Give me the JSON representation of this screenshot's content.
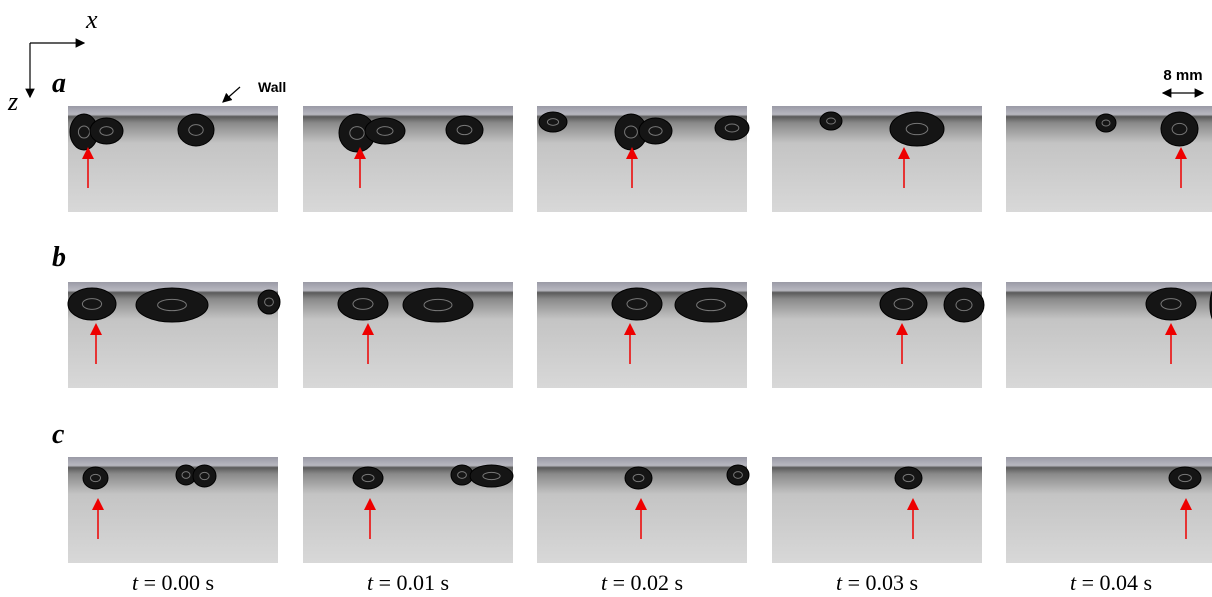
{
  "axes": {
    "x": "x",
    "z": "z"
  },
  "annotations": {
    "wall": "Wall",
    "scale": "8 mm"
  },
  "rows": [
    {
      "label": "a"
    },
    {
      "label": "b"
    },
    {
      "label": "c"
    }
  ],
  "time_labels": [
    {
      "variable": "t",
      "text": "= 0.00 s"
    },
    {
      "variable": "t",
      "text": "= 0.01 s"
    },
    {
      "variable": "t",
      "text": "= 0.02 s"
    },
    {
      "variable": "t",
      "text": "= 0.03 s"
    },
    {
      "variable": "t",
      "text": "= 0.04 s"
    }
  ]
}
